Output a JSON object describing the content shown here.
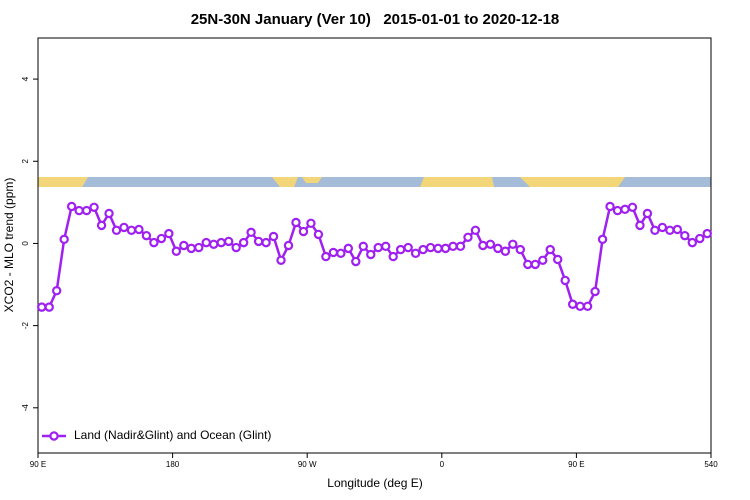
{
  "chart_data": {
    "type": "line",
    "title": "25N-30N January (Ver 10)   2015-01-01 to 2020-12-18",
    "x_label": "Longitude (deg E)",
    "y_label": "XCO2 - MLO trend (ppm)",
    "xlim": [
      90,
      540
    ],
    "ylim": [
      -5.1,
      5.0
    ],
    "xticks": [
      {
        "value": 90,
        "label": "90 E"
      },
      180,
      {
        "value": 270,
        "label": "90 W"
      },
      {
        "value": 360,
        "label": "0"
      },
      {
        "value": 450,
        "label": "90 E"
      },
      540
    ],
    "yticks": [
      -4,
      -2,
      0,
      2,
      4
    ],
    "legend": "bottom-left",
    "series": [
      {
        "name": "Land (Nadir&Glint) and Ocean (Glint)",
        "color": "#a020f0",
        "x": [
          92.5,
          97.5,
          102.5,
          107.5,
          112.5,
          117.5,
          122.5,
          127.5,
          132.5,
          137.5,
          142.5,
          147.5,
          152.5,
          157.5,
          162.5,
          167.5,
          172.5,
          177.5,
          182.5,
          187.5,
          192.5,
          197.5,
          202.5,
          207.5,
          212.5,
          217.5,
          222.5,
          227.5,
          232.5,
          237.5,
          242.5,
          247.5,
          252.5,
          257.5,
          262.5,
          267.5,
          272.5,
          277.5,
          282.5,
          287.5,
          292.5,
          297.5,
          302.5,
          307.5,
          312.5,
          317.5,
          322.5,
          327.5,
          332.5,
          337.5,
          342.5,
          347.5,
          352.5,
          357.5,
          362.5,
          367.5,
          372.5,
          377.5,
          382.5,
          387.5,
          392.5,
          397.5,
          402.5,
          407.5,
          412.5,
          417.5,
          422.5,
          427.5,
          432.5,
          437.5,
          442.5,
          447.5,
          452.5,
          457.5,
          462.5,
          467.5,
          472.5,
          477.5,
          482.5,
          487.5,
          492.5,
          497.5,
          502.5,
          507.5,
          512.5,
          517.5,
          522.5,
          527.5,
          532.5,
          537.5
        ],
        "values": [
          -1.55,
          -1.55,
          -1.15,
          0.1,
          0.9,
          0.8,
          0.8,
          0.88,
          0.44,
          0.73,
          0.32,
          0.39,
          0.32,
          0.34,
          0.19,
          0.02,
          0.12,
          0.24,
          -0.19,
          -0.05,
          -0.12,
          -0.1,
          0.02,
          -0.02,
          0.02,
          0.05,
          -0.1,
          0.02,
          0.27,
          0.05,
          0.02,
          0.17,
          -0.41,
          -0.05,
          0.51,
          0.29,
          0.49,
          0.22,
          -0.32,
          -0.22,
          -0.24,
          -0.12,
          -0.44,
          -0.07,
          -0.27,
          -0.1,
          -0.07,
          -0.32,
          -0.15,
          -0.1,
          -0.24,
          -0.15,
          -0.1,
          -0.12,
          -0.12,
          -0.07,
          -0.07,
          0.15,
          0.32,
          -0.05,
          -0.02,
          -0.12,
          -0.19,
          -0.02,
          -0.15,
          -0.51,
          -0.51,
          -0.41,
          -0.15,
          -0.39,
          -0.9,
          -1.48,
          -1.53,
          -1.53,
          -1.17,
          0.1,
          0.9,
          0.8,
          0.83,
          0.88,
          0.44,
          0.73,
          0.32,
          0.39,
          0.32,
          0.34,
          0.19,
          0.02,
          0.12,
          0.24
        ]
      }
    ]
  }
}
